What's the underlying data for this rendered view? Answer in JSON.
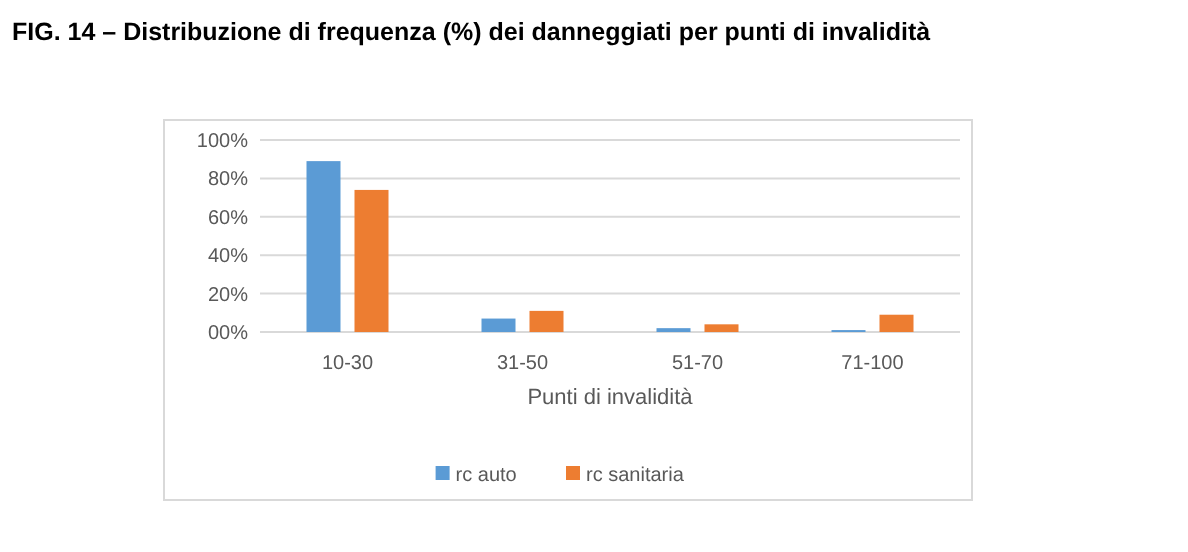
{
  "chart_data": {
    "type": "bar",
    "title": "FIG. 14 – Distribuzione di frequenza (%) dei danneggiati per punti di invalidità",
    "xlabel": "Punti di invalidità",
    "categories": [
      "10-30",
      "31-50",
      "51-70",
      "71-100"
    ],
    "series": [
      {
        "name": "rc auto",
        "color": "#5b9bd5",
        "values": [
          89,
          7,
          2,
          1
        ]
      },
      {
        "name": "rc sanitaria",
        "color": "#ed7d31",
        "values": [
          74,
          11,
          4,
          9
        ]
      }
    ],
    "ylim": [
      0,
      100
    ],
    "yticks": [
      {
        "value": 0,
        "label": "00%"
      },
      {
        "value": 20,
        "label": "20%"
      },
      {
        "value": 40,
        "label": "40%"
      },
      {
        "value": 60,
        "label": "60%"
      },
      {
        "value": 80,
        "label": "80%"
      },
      {
        "value": 100,
        "label": "100%"
      }
    ],
    "grid": "y",
    "legend": "bottom"
  }
}
